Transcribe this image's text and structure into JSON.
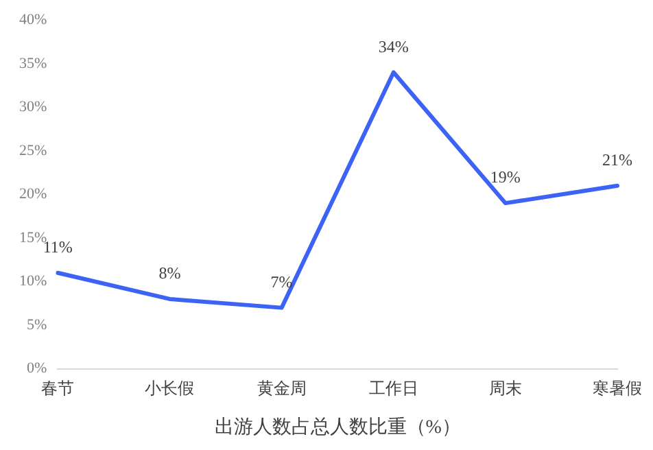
{
  "chart_data": {
    "type": "line",
    "xlabel": "出游人数占总人数比重（%）",
    "categories": [
      "春节",
      "小长假",
      "黄金周",
      "工作日",
      "周末",
      "寒暑假"
    ],
    "series": [
      {
        "color": "#3d63f5",
        "values": [
          11,
          8,
          7,
          34,
          19,
          21
        ],
        "value_labels": [
          "11%",
          "8%",
          "7%",
          "34%",
          "19%",
          "21%"
        ]
      }
    ],
    "ylim": [
      0,
      40
    ],
    "yticks": [
      {
        "value": 0,
        "label": "0%"
      },
      {
        "value": 5,
        "label": "5%"
      },
      {
        "value": 10,
        "label": "10%"
      },
      {
        "value": 15,
        "label": "15%"
      },
      {
        "value": 20,
        "label": "20%"
      },
      {
        "value": 25,
        "label": "25%"
      },
      {
        "value": 30,
        "label": "30%"
      },
      {
        "value": 35,
        "label": "35%"
      },
      {
        "value": 40,
        "label": "40%"
      }
    ],
    "grid": false,
    "legend": false,
    "marker": "none",
    "line_style": "solid"
  }
}
